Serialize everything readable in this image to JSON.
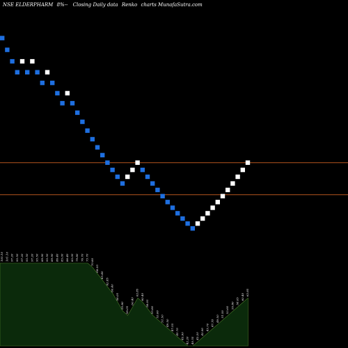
{
  "header": {
    "symbol": "NSE ELDERPHARM",
    "change": "8%--",
    "description": "Closing Daily data",
    "chart_kind": "Renko",
    "suffix": "charts MunafaSutra.com"
  },
  "colors": {
    "background": "#000000",
    "up_brick": "#ffffff",
    "down_brick": "#1e6fe0",
    "level_line": "#b5561e",
    "volume_fill": "#0b2a0b",
    "volume_stroke": "#4a7a2a",
    "text": "#ffffff"
  },
  "chart_data": {
    "type": "renko",
    "title": "NSE ELDERPHARM 8%-- Closing Daily data Renko charts MunafaSutra.com",
    "bricks": [
      {
        "dir": "down",
        "close": 105.1
      },
      {
        "dir": "down",
        "close": 101.1
      },
      {
        "dir": "down",
        "close": 97.2
      },
      {
        "dir": "down",
        "close": 93.5
      },
      {
        "dir": "up",
        "close": 97.2
      },
      {
        "dir": "down",
        "close": 93.5
      },
      {
        "dir": "up",
        "close": 97.2
      },
      {
        "dir": "down",
        "close": 93.5
      },
      {
        "dir": "down",
        "close": 89.9
      },
      {
        "dir": "up",
        "close": 93.5
      },
      {
        "dir": "down",
        "close": 89.9
      },
      {
        "dir": "down",
        "close": 86.4
      },
      {
        "dir": "down",
        "close": 83.0
      },
      {
        "dir": "up",
        "close": 86.4
      },
      {
        "dir": "down",
        "close": 83.0
      },
      {
        "dir": "down",
        "close": 79.8
      },
      {
        "dir": "down",
        "close": 76.7
      },
      {
        "dir": "down",
        "close": 73.7
      },
      {
        "dir": "down",
        "close": 70.8
      },
      {
        "dir": "down",
        "close": 68.05
      },
      {
        "dir": "down",
        "close": 65.4
      },
      {
        "dir": "down",
        "close": 62.85
      },
      {
        "dir": "down",
        "close": 60.4
      },
      {
        "dir": "down",
        "close": 58.05
      },
      {
        "dir": "down",
        "close": 55.8
      },
      {
        "dir": "up",
        "close": 58.05
      },
      {
        "dir": "up",
        "close": 60.4
      },
      {
        "dir": "up",
        "close": 62.85
      },
      {
        "dir": "down",
        "close": 60.4
      },
      {
        "dir": "down",
        "close": 58.05
      },
      {
        "dir": "down",
        "close": 55.8
      },
      {
        "dir": "down",
        "close": 53.6
      },
      {
        "dir": "down",
        "close": 51.5
      },
      {
        "dir": "down",
        "close": 49.5
      },
      {
        "dir": "down",
        "close": 47.55
      },
      {
        "dir": "down",
        "close": 45.7
      },
      {
        "dir": "down",
        "close": 43.9
      },
      {
        "dir": "down",
        "close": 42.2
      },
      {
        "dir": "down",
        "close": 40.55
      },
      {
        "dir": "up",
        "close": 42.2
      },
      {
        "dir": "up",
        "close": 43.9
      },
      {
        "dir": "up",
        "close": 45.7
      },
      {
        "dir": "up",
        "close": 47.55
      },
      {
        "dir": "up",
        "close": 49.5
      },
      {
        "dir": "up",
        "close": 51.5
      },
      {
        "dir": "up",
        "close": 53.6
      },
      {
        "dir": "up",
        "close": 55.8
      },
      {
        "dir": "up",
        "close": 58.05
      },
      {
        "dir": "up",
        "close": 60.4
      },
      {
        "dir": "up",
        "close": 62.85
      }
    ],
    "horizontal_levels": [
      62.85,
      52.0
    ],
    "y_range": [
      0,
      118
    ],
    "volume_profile": [
      0.38,
      0.38,
      0.38,
      0.38,
      0.38,
      0.38,
      0.38,
      0.38,
      0.38,
      0.38,
      0.38,
      0.38,
      0.38,
      0.38,
      0.38,
      0.38,
      0.38,
      0.38,
      0.36,
      0.33,
      0.3,
      0.27,
      0.24,
      0.2,
      0.16,
      0.14,
      0.18,
      0.22,
      0.2,
      0.17,
      0.14,
      0.12,
      0.1,
      0.08,
      0.06,
      0.04,
      0.02,
      0.0,
      0.0,
      0.02,
      0.04,
      0.06,
      0.08,
      0.1,
      0.12,
      0.14,
      0.16,
      0.18,
      0.2,
      0.22
    ],
    "grid": false,
    "legend": "none"
  }
}
